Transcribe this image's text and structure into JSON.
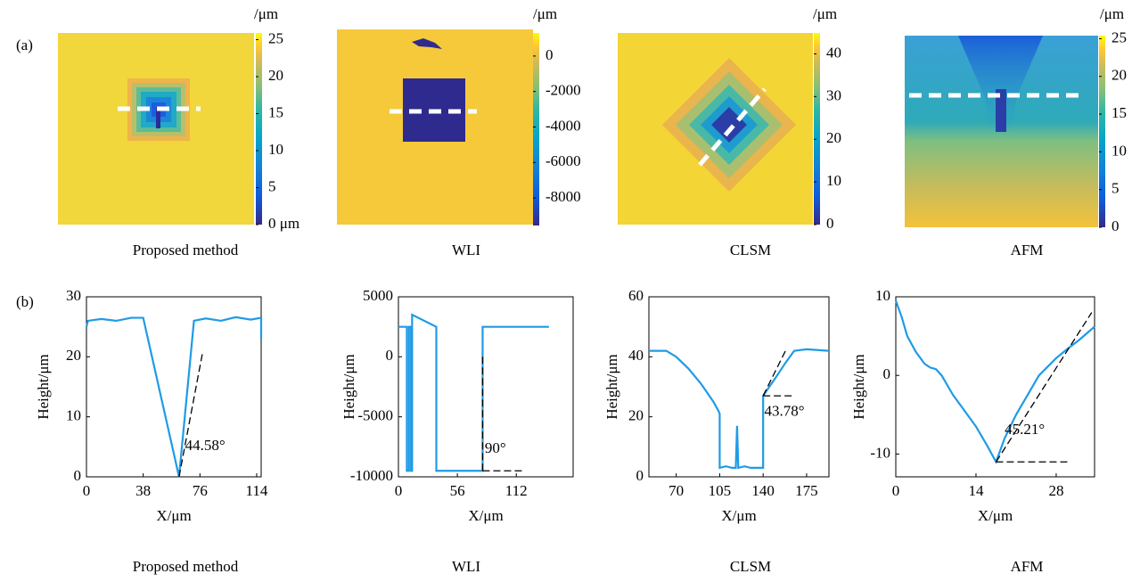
{
  "panel_labels": [
    "(a)",
    "(b)"
  ],
  "maps": [
    {
      "unit": "/μm",
      "caption": "Proposed method",
      "colorbar_lim": [
        0,
        25.9
      ],
      "colorbar_ticks": [
        {
          "value": 0,
          "label": "0 μm"
        },
        5,
        10,
        15,
        20,
        25
      ]
    },
    {
      "unit": "/μm",
      "caption": "WLI",
      "colorbar_lim": [
        -9550,
        1300
      ],
      "colorbar_ticks": [
        0,
        -2000,
        -4000,
        -6000,
        -8000
      ]
    },
    {
      "unit": "/μm",
      "caption": "CLSM",
      "colorbar_lim": [
        0,
        44.9
      ],
      "colorbar_ticks": [
        0,
        10,
        20,
        30,
        40
      ]
    },
    {
      "unit": "/μm",
      "caption": "AFM",
      "colorbar_lim": [
        0,
        25.4
      ],
      "colorbar_ticks": [
        0,
        5,
        10,
        15,
        20,
        25
      ]
    }
  ],
  "chart_data": [
    {
      "type": "line",
      "caption": "Proposed method",
      "xlabel": "X/μm",
      "ylabel": "Height/μm",
      "xlim": [
        0,
        117
      ],
      "xticks": [
        0,
        38,
        76,
        114
      ],
      "ylim": [
        0,
        30
      ],
      "yticks": [
        0,
        10,
        20,
        30
      ],
      "series": [
        {
          "color": "#1f9be6",
          "x": [
            0,
            1,
            10,
            20,
            30,
            38,
            62,
            72,
            80,
            90,
            100,
            110,
            117,
            117
          ],
          "values": [
            25,
            26,
            26.3,
            26,
            26.5,
            26.5,
            0,
            26,
            26.4,
            26,
            26.6,
            26.2,
            26.5,
            23
          ]
        },
        {
          "color": "#000000",
          "dash": true,
          "x": [
            62,
            78
          ],
          "values": [
            0,
            21
          ]
        }
      ],
      "annotations": [
        {
          "text": "44.58°",
          "x": 66,
          "y": 5
        }
      ]
    },
    {
      "type": "line",
      "caption": "WLI",
      "xlabel": "X/μm",
      "ylabel": "Height/μm",
      "xlim": [
        0,
        166
      ],
      "xticks": [
        0,
        56,
        112
      ],
      "ylim": [
        -10000,
        5000
      ],
      "yticks": [
        5000,
        0,
        -5000,
        -10000
      ],
      "series": [
        {
          "color": "#1f9be6",
          "x": [
            0,
            8,
            8,
            10,
            10,
            12,
            12,
            13,
            13,
            36,
            36,
            80,
            80,
            143
          ],
          "values": [
            2500,
            2500,
            -9500,
            -9500,
            2500,
            2500,
            -9500,
            -9500,
            3500,
            2500,
            -9500,
            -9500,
            2500,
            2500
          ]
        },
        {
          "color": "#000000",
          "dash": true,
          "x": [
            80,
            80
          ],
          "values": [
            -9500,
            0
          ]
        },
        {
          "color": "#000000",
          "dash": true,
          "x": [
            80,
            118
          ],
          "values": [
            -9500,
            -9500
          ]
        }
      ],
      "annotations": [
        {
          "text": "90°",
          "x": 82,
          "y": -7700
        }
      ]
    },
    {
      "type": "line",
      "caption": "CLSM",
      "xlabel": "X/μm",
      "ylabel": "Height/μm",
      "xlim": [
        48,
        193
      ],
      "xticks": [
        70,
        105,
        140,
        175
      ],
      "ylim": [
        0,
        60
      ],
      "yticks": [
        0,
        20,
        40,
        60
      ],
      "series": [
        {
          "color": "#1f9be6",
          "x": [
            48,
            62,
            70,
            80,
            90,
            100,
            104,
            105,
            105,
            110,
            115,
            118,
            119,
            120,
            125,
            130,
            139,
            140,
            140,
            150,
            158,
            165,
            175,
            193
          ],
          "values": [
            42,
            42,
            40,
            36,
            31,
            25,
            22,
            21,
            3,
            3.5,
            3,
            3,
            17,
            3,
            3.5,
            3,
            3,
            3,
            27,
            33,
            38,
            42,
            42.5,
            42
          ]
        },
        {
          "color": "#000000",
          "dash": true,
          "x": [
            140,
            158
          ],
          "values": [
            27,
            42
          ]
        },
        {
          "color": "#000000",
          "dash": true,
          "x": [
            140,
            165
          ],
          "values": [
            27,
            27
          ]
        }
      ],
      "annotations": [
        {
          "text": "43.78°",
          "x": 141,
          "y": 21.5
        }
      ]
    },
    {
      "type": "line",
      "caption": "AFM",
      "xlabel": "X/μm",
      "ylabel": "Height/μm",
      "xlim": [
        0,
        34.7
      ],
      "xticks": [
        0,
        14,
        28
      ],
      "ylim": [
        -12.9,
        10
      ],
      "yticks": [
        10,
        0,
        -10
      ],
      "series": [
        {
          "color": "#1f9be6",
          "x": [
            0,
            1,
            2,
            3.5,
            5,
            6,
            7,
            8,
            10,
            12,
            14,
            16,
            17.5,
            19,
            21,
            23,
            25,
            28,
            30,
            32,
            34.7
          ],
          "values": [
            9.5,
            7.5,
            5,
            3,
            1.5,
            1,
            0.8,
            0,
            -2.5,
            -4.5,
            -6.5,
            -9,
            -11,
            -8,
            -5,
            -2.5,
            0,
            2.2,
            3.4,
            4.5,
            6.2
          ]
        },
        {
          "color": "#000000",
          "dash": true,
          "x": [
            17.5,
            34.2
          ],
          "values": [
            -11,
            8
          ]
        },
        {
          "color": "#000000",
          "dash": true,
          "x": [
            17.5,
            30
          ],
          "values": [
            -11,
            -11
          ]
        }
      ],
      "annotations": [
        {
          "text": "45.21°",
          "x": 19,
          "y": -7
        }
      ]
    }
  ]
}
